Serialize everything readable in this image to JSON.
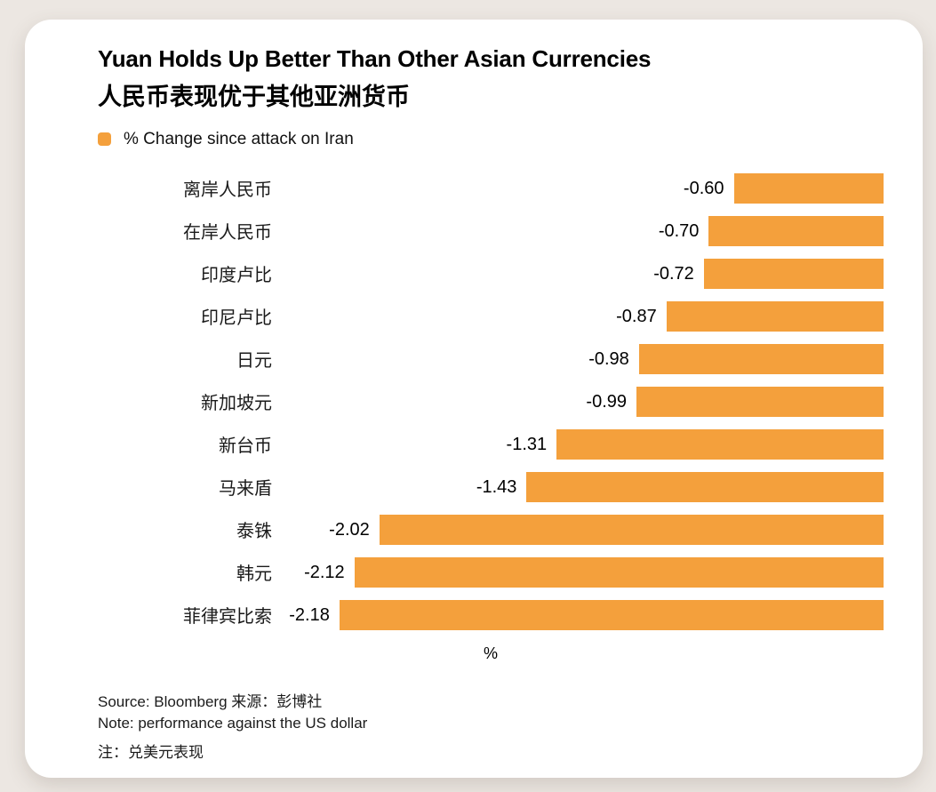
{
  "card": {
    "title": "Yuan Holds Up Better Than Other Asian Currencies",
    "subtitle_zh": "人民币表现优于其他亚洲货币",
    "legend_label": "% Change since attack on Iran",
    "footer": {
      "source": "Source: Bloomberg  来源：彭博社",
      "note_en": "Note: performance against the US dollar",
      "note_zh": "注：兑美元表现"
    }
  },
  "chart_data": {
    "type": "bar",
    "orientation": "horizontal",
    "title": "Yuan Holds Up Better Than Other Asian Currencies",
    "subtitle": "人民币表现优于其他亚洲货币",
    "legend": [
      "% Change since attack on Iran"
    ],
    "legend_position": "top-left",
    "categories": [
      "离岸人民币",
      "在岸人民币",
      "印度卢比",
      "印尼卢比",
      "日元",
      "新加坡元",
      "新台币",
      "马来盾",
      "泰铢",
      "韩元",
      "菲律宾比索"
    ],
    "values": [
      -0.6,
      -0.7,
      -0.72,
      -0.87,
      -0.98,
      -0.99,
      -1.31,
      -1.43,
      -2.02,
      -2.12,
      -2.18
    ],
    "value_labels": [
      "-0.60",
      "-0.70",
      "-0.72",
      "-0.87",
      "-0.98",
      "-0.99",
      "-1.31",
      "-1.43",
      "-2.02",
      "-2.12",
      "-2.18"
    ],
    "xlabel": "%",
    "ylabel": "",
    "xlim": [
      -2.45,
      0
    ],
    "grid": false,
    "bar_color": "#F4A03C",
    "baseline_side": "right"
  }
}
